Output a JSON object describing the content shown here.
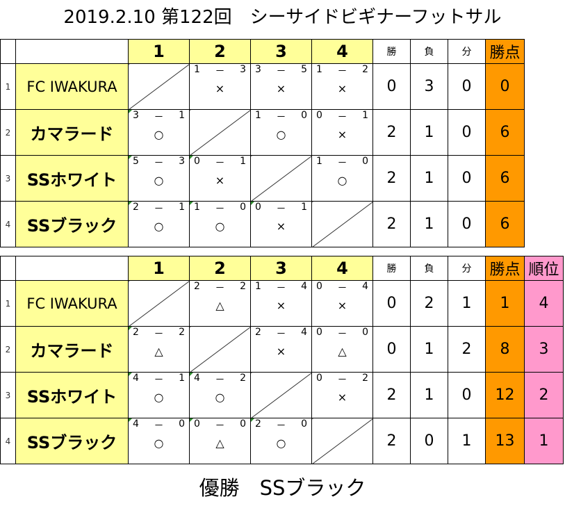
{
  "title": "2019.2.10 第122回　シーサイドビギナーフットサル",
  "header": {
    "cols": [
      "1",
      "2",
      "3",
      "4"
    ],
    "win": "勝",
    "loss": "負",
    "draw": "分",
    "points": "勝点",
    "rank": "順位"
  },
  "rounds": [
    {
      "rows": [
        {
          "no": "1",
          "team": "FC IWAKURA",
          "cells": [
            null,
            {
              "a": "1",
              "b": "3",
              "m": "×"
            },
            {
              "a": "3",
              "b": "5",
              "m": "×"
            },
            {
              "a": "1",
              "b": "2",
              "m": "×"
            }
          ],
          "w": "0",
          "l": "3",
          "d": "0",
          "pts": "0"
        },
        {
          "no": "2",
          "team": "カマラード",
          "cells": [
            {
              "a": "3",
              "b": "1",
              "m": "○"
            },
            null,
            {
              "a": "1",
              "b": "0",
              "m": "○"
            },
            {
              "a": "0",
              "b": "1",
              "m": "×"
            }
          ],
          "w": "2",
          "l": "1",
          "d": "0",
          "pts": "6"
        },
        {
          "no": "3",
          "team": "SSホワイト",
          "cells": [
            {
              "a": "5",
              "b": "3",
              "m": "○"
            },
            {
              "a": "0",
              "b": "1",
              "m": "×"
            },
            null,
            {
              "a": "1",
              "b": "0",
              "m": "○"
            }
          ],
          "w": "2",
          "l": "1",
          "d": "0",
          "pts": "6"
        },
        {
          "no": "4",
          "team": "SSブラック",
          "cells": [
            {
              "a": "2",
              "b": "1",
              "m": "○"
            },
            {
              "a": "1",
              "b": "0",
              "m": "○"
            },
            {
              "a": "0",
              "b": "1",
              "m": "×"
            },
            null
          ],
          "w": "2",
          "l": "1",
          "d": "0",
          "pts": "6"
        }
      ]
    },
    {
      "rows": [
        {
          "no": "1",
          "team": "FC IWAKURA",
          "cells": [
            null,
            {
              "a": "2",
              "b": "2",
              "m": "△"
            },
            {
              "a": "1",
              "b": "4",
              "m": "×"
            },
            {
              "a": "0",
              "b": "4",
              "m": "×"
            }
          ],
          "w": "0",
          "l": "2",
          "d": "1",
          "pts": "1",
          "rank": "4"
        },
        {
          "no": "2",
          "team": "カマラード",
          "cells": [
            {
              "a": "2",
              "b": "2",
              "m": "△"
            },
            null,
            {
              "a": "2",
              "b": "4",
              "m": "×"
            },
            {
              "a": "0",
              "b": "0",
              "m": "△"
            }
          ],
          "w": "0",
          "l": "1",
          "d": "2",
          "pts": "8",
          "rank": "3"
        },
        {
          "no": "3",
          "team": "SSホワイト",
          "cells": [
            {
              "a": "4",
              "b": "1",
              "m": "○"
            },
            {
              "a": "4",
              "b": "2",
              "m": "○"
            },
            null,
            {
              "a": "0",
              "b": "2",
              "m": "×"
            }
          ],
          "w": "2",
          "l": "1",
          "d": "0",
          "pts": "12",
          "rank": "2"
        },
        {
          "no": "4",
          "team": "SSブラック",
          "cells": [
            {
              "a": "4",
              "b": "0",
              "m": "○"
            },
            {
              "a": "0",
              "b": "0",
              "m": "△"
            },
            {
              "a": "2",
              "b": "0",
              "m": "○"
            },
            null
          ],
          "w": "2",
          "l": "0",
          "d": "1",
          "pts": "13",
          "rank": "1"
        }
      ]
    }
  ],
  "footer": "優勝　SSブラック",
  "colors": {
    "team_bg": "#ffff99",
    "points_bg": "#ff9900",
    "rank_bg": "#ff99cc",
    "note_marker": "#2e8b2e"
  }
}
